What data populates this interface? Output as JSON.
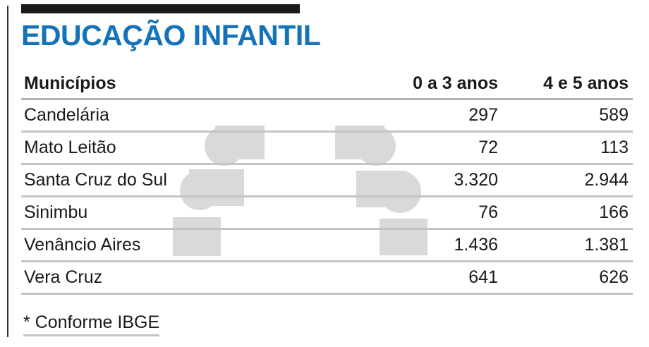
{
  "title": "EDUCAÇÃO INFANTIL",
  "table": {
    "headers": [
      "Municípios",
      "0 a 3 anos",
      "4 e 5 anos"
    ],
    "rows": [
      {
        "municipio": "Candelária",
        "age_0_3": "297",
        "age_4_5": "589"
      },
      {
        "municipio": "Mato Leitão",
        "age_0_3": "72",
        "age_4_5": "113"
      },
      {
        "municipio": "Santa Cruz do Sul",
        "age_0_3": "3.320",
        "age_4_5": "2.944"
      },
      {
        "municipio": "Sinimbu",
        "age_0_3": "76",
        "age_4_5": "166"
      },
      {
        "municipio": "Venâncio Aires",
        "age_0_3": "1.436",
        "age_4_5": "1.381"
      },
      {
        "municipio": "Vera Cruz",
        "age_0_3": "641",
        "age_4_5": "626"
      }
    ]
  },
  "footnote": "* Conforme IBGE",
  "colors": {
    "title": "#1372b8",
    "rule": "#c4c4c4",
    "watermark": "#d6d6d6"
  },
  "icons": [
    "children-figures-watermark-icon"
  ]
}
